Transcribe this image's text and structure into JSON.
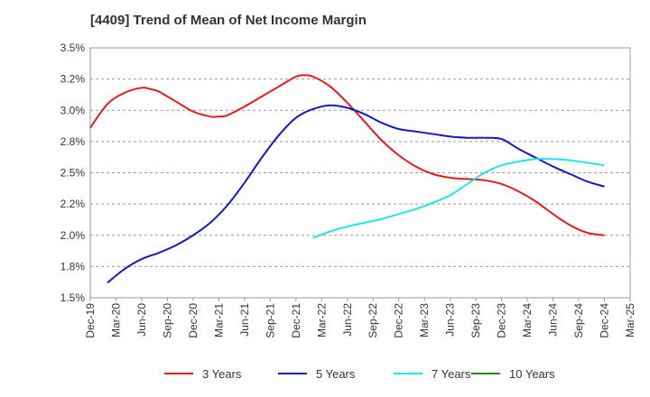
{
  "chart_data": {
    "type": "line",
    "title": "[4409]  Trend of Mean of Net Income Margin",
    "xlabel": "",
    "ylabel": "",
    "x_ticks": [
      "Dec-19",
      "Mar-20",
      "Jun-20",
      "Sep-20",
      "Dec-20",
      "Mar-21",
      "Jun-21",
      "Sep-21",
      "Dec-21",
      "Mar-22",
      "Jun-22",
      "Sep-22",
      "Dec-22",
      "Mar-23",
      "Jun-23",
      "Sep-23",
      "Dec-23",
      "Mar-24",
      "Jun-24",
      "Sep-24",
      "Dec-24",
      "Mar-25"
    ],
    "y_ticks": [
      "1.5%",
      "1.8%",
      "2.0%",
      "2.2%",
      "2.5%",
      "2.8%",
      "3.0%",
      "3.2%",
      "3.5%"
    ],
    "ylim": [
      1.5,
      3.5
    ],
    "grid": "horizontal dashed",
    "legend_position": "bottom",
    "series": [
      {
        "name": "3 Years",
        "color": "#e8181b",
        "x": [
          "Dec-19",
          "Feb-20",
          "Apr-20",
          "Jun-20",
          "Jul-20",
          "Aug-20",
          "Oct-20",
          "Dec-20",
          "Feb-21",
          "Mar-21",
          "Apr-21",
          "Jun-21",
          "Aug-21",
          "Oct-21",
          "Dec-21",
          "Jan-22",
          "Feb-22",
          "Apr-22",
          "Jun-22",
          "Aug-22",
          "Oct-22",
          "Dec-22",
          "Feb-23",
          "Apr-23",
          "Jun-23",
          "Aug-23",
          "Oct-23",
          "Dec-23",
          "Feb-24",
          "Apr-24",
          "Jun-24",
          "Aug-24",
          "Oct-24",
          "Dec-24"
        ],
        "values": [
          2.86,
          3.05,
          3.14,
          3.18,
          3.17,
          3.15,
          3.07,
          2.99,
          2.95,
          2.95,
          2.96,
          3.03,
          3.11,
          3.19,
          3.27,
          3.28,
          3.27,
          3.19,
          3.06,
          2.91,
          2.76,
          2.64,
          2.55,
          2.49,
          2.46,
          2.45,
          2.44,
          2.41,
          2.35,
          2.27,
          2.17,
          2.08,
          2.02,
          2.0
        ]
      },
      {
        "name": "5 Years",
        "color": "#1518c4",
        "x": [
          "Feb-20",
          "Apr-20",
          "Jun-20",
          "Aug-20",
          "Oct-20",
          "Dec-20",
          "Feb-21",
          "Apr-21",
          "Jun-21",
          "Aug-21",
          "Oct-21",
          "Dec-21",
          "Feb-22",
          "Apr-22",
          "Jun-22",
          "Aug-22",
          "Oct-22",
          "Dec-22",
          "Feb-23",
          "Apr-23",
          "Jun-23",
          "Aug-23",
          "Oct-23",
          "Dec-23",
          "Feb-24",
          "Apr-24",
          "Jun-24",
          "Aug-24",
          "Oct-24",
          "Dec-24"
        ],
        "values": [
          1.62,
          1.73,
          1.81,
          1.86,
          1.92,
          2.0,
          2.1,
          2.24,
          2.42,
          2.62,
          2.8,
          2.94,
          3.01,
          3.04,
          3.02,
          2.97,
          2.9,
          2.85,
          2.83,
          2.81,
          2.79,
          2.78,
          2.78,
          2.77,
          2.69,
          2.62,
          2.55,
          2.49,
          2.43,
          2.39
        ]
      },
      {
        "name": "7 Years",
        "color": "#1ee5f0",
        "x": [
          "Feb-22",
          "Apr-22",
          "Jun-22",
          "Aug-22",
          "Oct-22",
          "Dec-22",
          "Feb-23",
          "Apr-23",
          "Jun-23",
          "Aug-23",
          "Oct-23",
          "Dec-23",
          "Feb-24",
          "Apr-24",
          "Jun-24",
          "Aug-24",
          "Oct-24",
          "Dec-24"
        ],
        "values": [
          1.98,
          2.03,
          2.07,
          2.1,
          2.13,
          2.17,
          2.21,
          2.26,
          2.32,
          2.41,
          2.5,
          2.56,
          2.59,
          2.61,
          2.61,
          2.6,
          2.58,
          2.56
        ]
      },
      {
        "name": "10 Years",
        "color": "#1a8a1a",
        "x": [],
        "values": []
      }
    ]
  }
}
